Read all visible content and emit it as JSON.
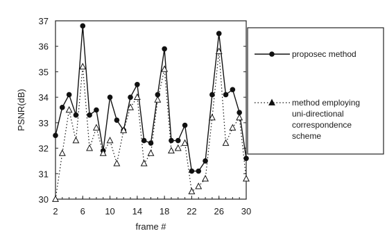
{
  "chart_data": {
    "type": "line",
    "title": "",
    "xlabel": "frame #",
    "ylabel": "PSNR(dB)",
    "xlim": [
      2,
      30
    ],
    "ylim": [
      30,
      37
    ],
    "x_ticks": [
      "2",
      "6",
      "10",
      "14",
      "18",
      "22",
      "26",
      "30"
    ],
    "y_ticks": [
      "30",
      "31",
      "32",
      "33",
      "34",
      "35",
      "36",
      "37"
    ],
    "grid": false,
    "legend_position": "right",
    "x": [
      2,
      3,
      4,
      5,
      6,
      7,
      8,
      9,
      10,
      11,
      12,
      13,
      14,
      15,
      16,
      17,
      18,
      19,
      20,
      21,
      22,
      23,
      24,
      25,
      26,
      27,
      28,
      29,
      30
    ],
    "series": [
      {
        "name": "proposed method",
        "marker": "circle",
        "line": "solid",
        "color": "#111111",
        "values": [
          32.5,
          33.6,
          34.1,
          33.3,
          36.8,
          33.3,
          33.5,
          31.9,
          34.0,
          33.1,
          32.7,
          34.0,
          34.5,
          32.3,
          32.2,
          34.1,
          35.9,
          32.3,
          32.3,
          32.9,
          31.1,
          31.1,
          31.5,
          34.1,
          36.5,
          34.1,
          34.3,
          33.4,
          31.6
        ]
      },
      {
        "name": "method employing uni-directional correspondence scheme",
        "marker": "triangle",
        "line": "dotted",
        "color": "#111111",
        "values": [
          30.0,
          31.8,
          33.5,
          32.3,
          35.2,
          32.0,
          32.8,
          31.8,
          32.3,
          31.4,
          32.7,
          33.6,
          34.0,
          31.4,
          31.8,
          33.9,
          35.1,
          31.9,
          32.0,
          32.2,
          30.3,
          30.5,
          30.8,
          33.2,
          35.8,
          32.2,
          32.8,
          33.2,
          30.8
        ]
      }
    ],
    "legend_lines": [
      [
        "proposec method"
      ],
      [
        "method employing",
        "uni-directional",
        "correspondence",
        "scheme"
      ]
    ]
  }
}
